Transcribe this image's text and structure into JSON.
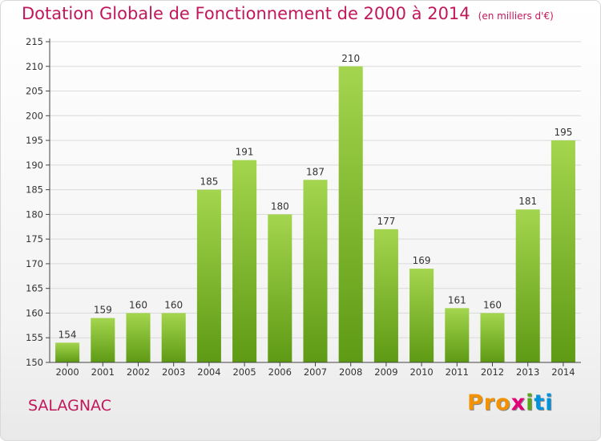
{
  "header": {
    "title": "Dotation Globale de Fonctionnement de 2000 à 2014",
    "subtitle": "(en milliers d'€)"
  },
  "footer": {
    "commune": "SALAGNAC",
    "logo_letters": [
      "P",
      "r",
      "o",
      "x",
      "i",
      "t",
      "i"
    ],
    "logo_colors": [
      "#f39200",
      "#f39200",
      "#f39200",
      "#e2007a",
      "#5aa719",
      "#0093dd",
      "#0093dd"
    ]
  },
  "colors": {
    "bar_light": "#a4d54e",
    "bar_dark": "#5e9a14",
    "axis": "#444444",
    "grid": "#d9d9d9",
    "accent": "#c2185b"
  },
  "chart_data": {
    "type": "bar",
    "title": "Dotation Globale de Fonctionnement de 2000 à 2014",
    "subtitle": "(en milliers d'€)",
    "xlabel": "",
    "ylabel": "",
    "categories": [
      "2000",
      "2001",
      "2002",
      "2003",
      "2004",
      "2005",
      "2006",
      "2007",
      "2008",
      "2009",
      "2010",
      "2011",
      "2012",
      "2013",
      "2014"
    ],
    "values": [
      154,
      159,
      160,
      160,
      185,
      191,
      180,
      187,
      210,
      177,
      169,
      161,
      160,
      181,
      195
    ],
    "ylim": [
      150,
      215
    ],
    "yticks": [
      150,
      155,
      160,
      165,
      170,
      175,
      180,
      185,
      190,
      195,
      200,
      205,
      210,
      215
    ],
    "grid": true,
    "data_labels": true
  }
}
